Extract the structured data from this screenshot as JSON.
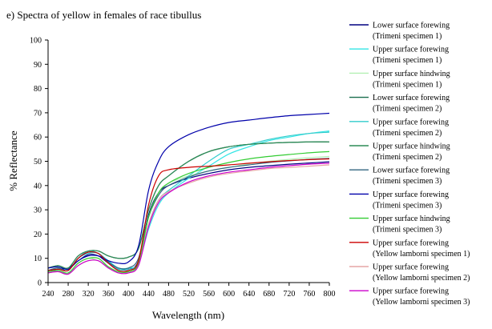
{
  "chart_data": {
    "type": "line",
    "title": "e)  Spectra of yellow in females of race tibullus",
    "xlabel": "Wavelength (nm)",
    "ylabel": "% Reflectance",
    "xlim": [
      240,
      800
    ],
    "ylim": [
      0,
      100
    ],
    "x_ticks": [
      240,
      280,
      320,
      360,
      400,
      440,
      480,
      520,
      560,
      600,
      640,
      680,
      720,
      760,
      800
    ],
    "y_ticks": [
      0,
      10,
      20,
      30,
      40,
      50,
      60,
      70,
      80,
      90,
      100
    ],
    "grid": false,
    "legend_position": "right",
    "x": [
      240,
      260,
      280,
      300,
      320,
      340,
      360,
      380,
      400,
      420,
      440,
      460,
      480,
      520,
      560,
      600,
      640,
      680,
      720,
      760,
      800
    ],
    "series": [
      {
        "name": "Lower surface forewing (Trimeni specimen 1)",
        "color": "#000080",
        "values": [
          5,
          5.5,
          6,
          9,
          11.5,
          11,
          8,
          5.5,
          5.5,
          9,
          28,
          37,
          40,
          43,
          45,
          46.5,
          47.5,
          48.2,
          48.8,
          49.3,
          49.8
        ]
      },
      {
        "name": "Upper surface forewing (Trimeni specimen 1)",
        "color": "#33e6e6",
        "values": [
          5,
          6,
          5,
          10,
          13,
          12,
          9,
          6,
          6,
          8,
          22,
          32,
          37,
          43,
          48,
          53,
          56,
          58.5,
          60,
          61.5,
          62.5
        ]
      },
      {
        "name": "Upper surface hindwing (Trimeni specimen 1)",
        "color": "#b3f0b3",
        "values": [
          4,
          5,
          4,
          8,
          10,
          9,
          6.5,
          4.5,
          4.5,
          8,
          27,
          37,
          41,
          44,
          46,
          47.5,
          49,
          50,
          50.8,
          51.5,
          52
        ]
      },
      {
        "name": "Lower surface forewing (Trimeni specimen 2)",
        "color": "#1a6e4d",
        "values": [
          6,
          7,
          6,
          11,
          13,
          13,
          11,
          10,
          10.5,
          14,
          30,
          40,
          44,
          50,
          54,
          56,
          57,
          57.5,
          57.8,
          58,
          58
        ]
      },
      {
        "name": "Upper surface forewing (Trimeni specimen 2)",
        "color": "#33cccc",
        "values": [
          5,
          6,
          5,
          10,
          12,
          12,
          8,
          5.5,
          5.5,
          8,
          24,
          34,
          38,
          44,
          50,
          55,
          57,
          59,
          60.5,
          61.5,
          62
        ]
      },
      {
        "name": "Upper surface hindwing (Trimeni specimen 2)",
        "color": "#2e8b57",
        "values": [
          6,
          7,
          6,
          11,
          13,
          13,
          11,
          10,
          10.5,
          14,
          30,
          40,
          44,
          50,
          54,
          56,
          57,
          57.5,
          57.8,
          58,
          58
        ]
      },
      {
        "name": "Lower surface forewing (Trimeni specimen 3)",
        "color": "#336680",
        "values": [
          5,
          6,
          5,
          10,
          12.5,
          12,
          8.5,
          6,
          6,
          10,
          27,
          36,
          40,
          43.5,
          46,
          47.5,
          48.5,
          49.5,
          50.2,
          50.8,
          51.2
        ]
      },
      {
        "name": "Upper surface forewing (Trimeni specimen 3)",
        "color": "#0000aa",
        "values": [
          6,
          6.5,
          5.5,
          9,
          11,
          11,
          9,
          8,
          8.5,
          15,
          38,
          50,
          56,
          61,
          64,
          66,
          67,
          68,
          68.8,
          69.3,
          69.8
        ]
      },
      {
        "name": "Upper surface hindwing (Trimeni specimen 3)",
        "color": "#33cc33",
        "values": [
          4.5,
          5,
          4,
          8,
          10,
          10,
          6.5,
          4.5,
          4.5,
          8,
          27,
          37,
          41,
          45,
          47.5,
          49.5,
          51,
          52,
          52.8,
          53.5,
          54
        ]
      },
      {
        "name": "Upper surface forewing (Yellow lamborni specimen 1)",
        "color": "#cc0000",
        "values": [
          5,
          5.5,
          5,
          10,
          12.5,
          12,
          8,
          5,
          5,
          9,
          32,
          44,
          46.5,
          47.5,
          48,
          48.5,
          49.2,
          49.8,
          50.3,
          50.7,
          51
        ]
      },
      {
        "name": "Upper surface forewing (Yellow lamborni specimen 2)",
        "color": "#e6a6a6",
        "values": [
          4,
          4.5,
          3.5,
          7,
          9,
          9,
          6,
          4,
          4,
          7,
          24,
          34,
          37.5,
          41,
          43.5,
          45,
          46,
          47,
          47.5,
          48,
          48.5
        ]
      },
      {
        "name": "Upper surface forewing (Yellow lamborni specimen 3)",
        "color": "#cc00cc",
        "values": [
          4,
          4.5,
          3.5,
          7,
          9,
          9,
          6,
          4,
          4,
          7,
          23,
          33,
          37,
          41.5,
          44,
          45.5,
          46.5,
          47.5,
          48.2,
          48.8,
          49.2
        ]
      }
    ]
  }
}
